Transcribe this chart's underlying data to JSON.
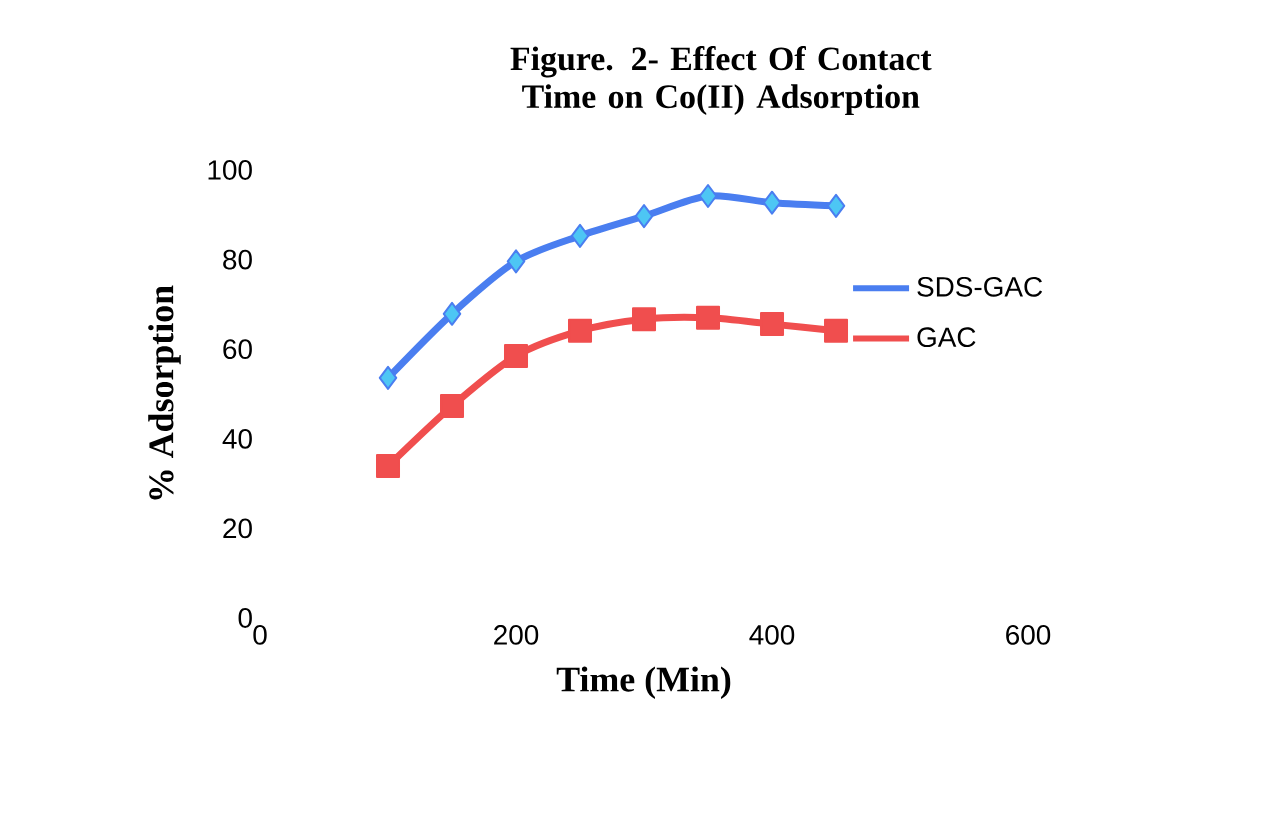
{
  "chart_data": {
    "type": "line",
    "title": "Figure. 2- Effect Of Contact Time on Co(II) Adsorption",
    "xlabel": "Time (Min)",
    "ylabel": "% Adsorption",
    "x": [
      100,
      150,
      200,
      250,
      300,
      350,
      400,
      450
    ],
    "series": [
      {
        "name": "SDS-GAC",
        "color": "#4a7ef0",
        "marker": "diamond",
        "values": [
          53.6,
          67.9,
          79.6,
          85.3,
          89.7,
          94.2,
          92.7,
          92.0
        ]
      },
      {
        "name": "GAC",
        "color": "#f04e4e",
        "marker": "square",
        "values": [
          33.9,
          47.3,
          58.5,
          64.1,
          66.7,
          67.0,
          65.6,
          64.1
        ]
      }
    ],
    "xlim": [
      0,
      600
    ],
    "xticks": [
      0,
      200,
      400,
      600
    ],
    "ylim": [
      0,
      100
    ],
    "yticks": [
      0,
      20,
      40,
      60,
      80,
      100
    ],
    "legend": "right",
    "grid": false
  }
}
